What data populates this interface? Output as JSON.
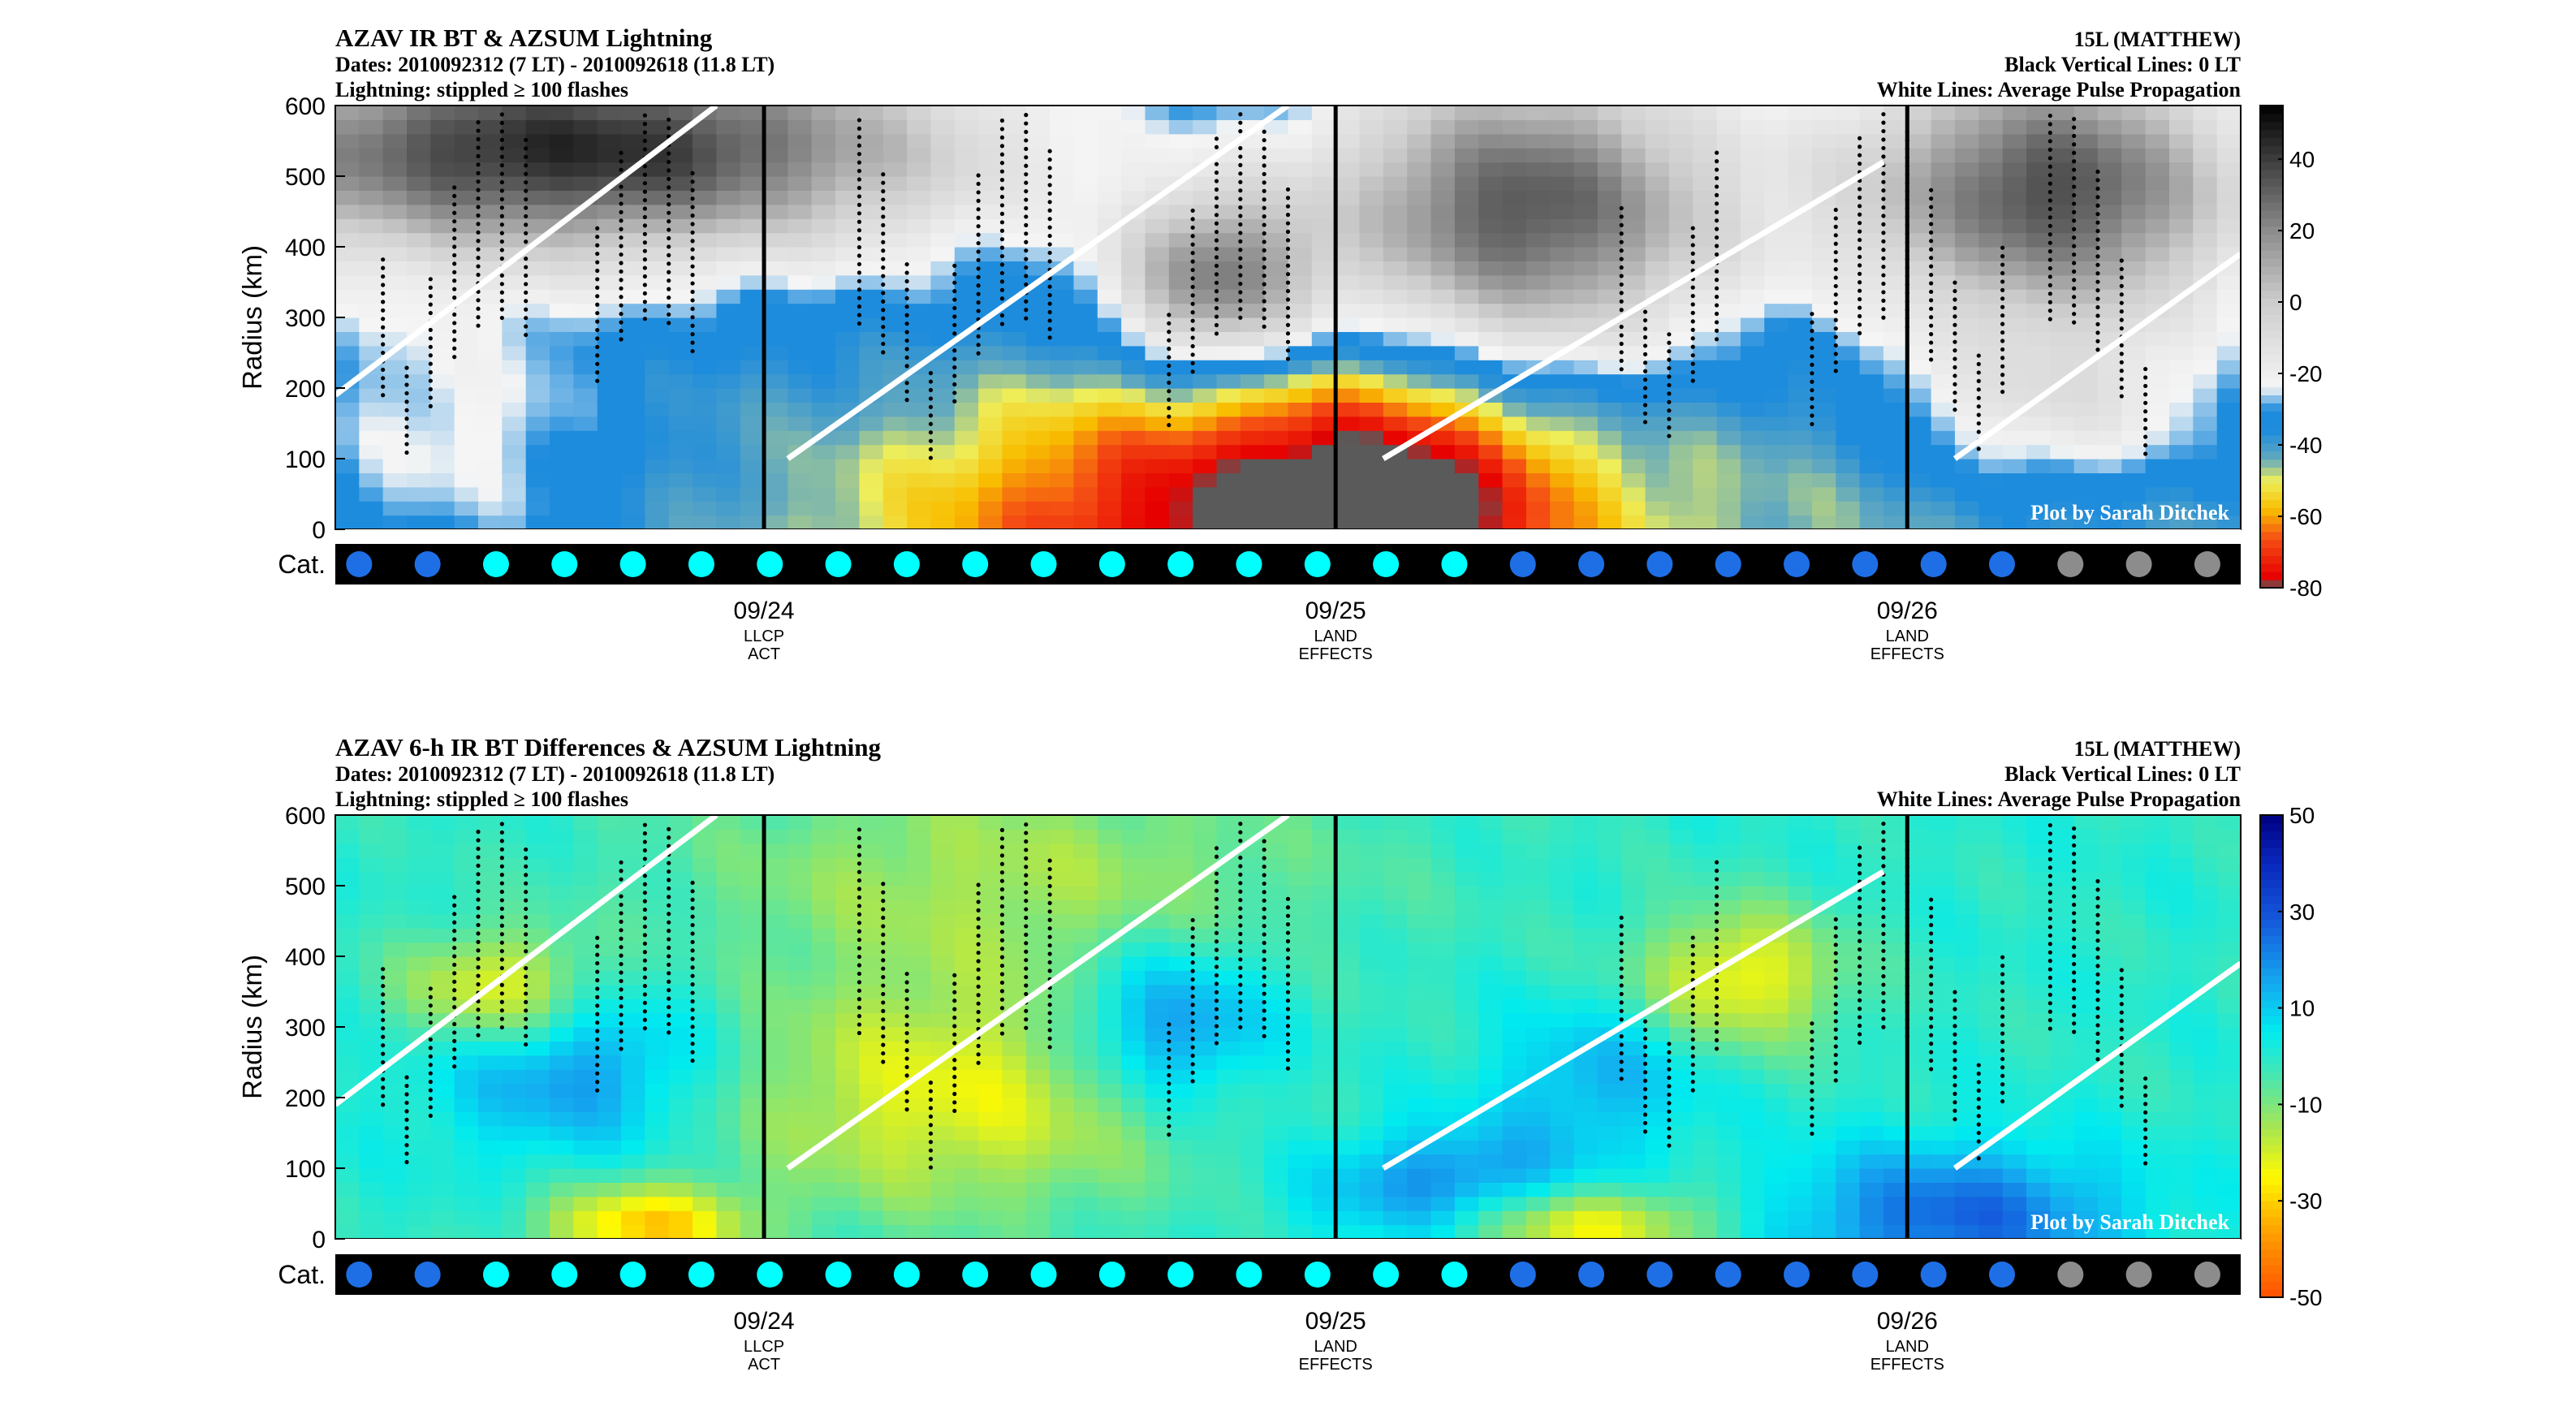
{
  "chart_data": [
    {
      "type": "heatmap",
      "title": "AZAV IR BT & AZSUM Lightning",
      "subtitle_lines": [
        "Dates: 2010092312 (7 LT) - 2010092618 (11.8 LT)",
        "Lightning: stippled ≥ 100 flashes"
      ],
      "right_lines": [
        "15L (MATTHEW)",
        "Black Vertical Lines: 0 LT",
        "White Lines: Average Pulse Propagation"
      ],
      "ylabel": "Radius (km)",
      "yticks": [
        "0",
        "100",
        "200",
        "300",
        "400",
        "500",
        "600"
      ],
      "ylim": [
        0,
        600
      ],
      "xticks": [
        {
          "label": "09/24",
          "sub": [
            "LLCP",
            "ACT"
          ],
          "time": 12
        },
        {
          "label": "09/25",
          "sub": [
            "LAND",
            "EFFECTS"
          ],
          "time": 36
        },
        {
          "label": "09/26",
          "sub": [
            "LAND",
            "EFFECTS"
          ],
          "time": 60
        }
      ],
      "xlim_hours": [
        -6,
        74
      ],
      "zero_lt_lines_hours": [
        12,
        36,
        60
      ],
      "colorbar": {
        "ticks": [
          "40",
          "20",
          "0",
          "-20",
          "-40",
          "-60",
          "-80"
        ],
        "range": [
          -80,
          55
        ],
        "palette": "ir_bt"
      },
      "watermark": "Plot by Sarah Ditchek",
      "cat_label": "Cat.",
      "category_colors": [
        "#1e6fe6",
        "#1e6fe6",
        "#00ffff",
        "#00ffff",
        "#00ffff",
        "#00ffff",
        "#00ffff",
        "#00ffff",
        "#00ffff",
        "#00ffff",
        "#00ffff",
        "#00ffff",
        "#00ffff",
        "#00ffff",
        "#00ffff",
        "#00ffff",
        "#00ffff",
        "#1e6fe6",
        "#1e6fe6",
        "#1e6fe6",
        "#1e6fe6",
        "#1e6fe6",
        "#1e6fe6",
        "#1e6fe6",
        "#1e6fe6",
        "#8c8c8c",
        "#8c8c8c",
        "#8c8c8c"
      ],
      "pulse_lines": [
        [
          [
            -6,
            190
          ],
          [
            10,
            600
          ]
        ],
        [
          [
            13,
            100
          ],
          [
            34,
            600
          ]
        ],
        [
          [
            38,
            100
          ],
          [
            59,
            520
          ]
        ],
        [
          [
            62,
            100
          ],
          [
            74,
            390
          ]
        ]
      ],
      "field_blobs": [
        {
          "t": 30,
          "r": 5,
          "st": 9,
          "sr": 200,
          "v": -76
        },
        {
          "t": 39,
          "r": 30,
          "st": 5,
          "sr": 130,
          "v": -70
        },
        {
          "t": 54,
          "r": 30,
          "st": 7,
          "sr": 180,
          "v": -45
        },
        {
          "t": 23,
          "r": 260,
          "st": 7,
          "sr": 130,
          "v": -30
        },
        {
          "t": -1,
          "r": 150,
          "st": 5,
          "sr": 160,
          "v": -23
        },
        {
          "t": 66,
          "r": 170,
          "st": 5,
          "sr": 80,
          "v": -18
        },
        {
          "t": 44,
          "r": 450,
          "st": 6,
          "sr": 150,
          "v": 34
        },
        {
          "t": 66,
          "r": 480,
          "st": 6,
          "sr": 140,
          "v": 35
        },
        {
          "t": 4,
          "r": 540,
          "st": 12,
          "sr": 110,
          "v": 44
        },
        {
          "t": 31,
          "r": 350,
          "st": 3,
          "sr": 90,
          "v": 20
        }
      ],
      "field_base": -40,
      "stipple_segments": [
        [
          -4,
          2
        ],
        [
          5,
          9
        ],
        [
          16,
          24
        ],
        [
          29,
          34
        ],
        [
          48,
          52
        ],
        [
          56,
          64
        ],
        [
          66,
          70
        ]
      ]
    },
    {
      "type": "heatmap",
      "title": "AZAV 6-h IR BT Differences & AZSUM Lightning",
      "subtitle_lines": [
        "Dates: 2010092312 (7 LT) - 2010092618 (11.8 LT)",
        "Lightning: stippled ≥ 100 flashes"
      ],
      "right_lines": [
        "15L (MATTHEW)",
        "Black Vertical Lines: 0 LT",
        "White Lines: Average Pulse Propagation"
      ],
      "ylabel": "Radius (km)",
      "yticks": [
        "0",
        "100",
        "200",
        "300",
        "400",
        "500",
        "600"
      ],
      "ylim": [
        0,
        600
      ],
      "xticks": [
        {
          "label": "09/24",
          "sub": [
            "LLCP",
            "ACT"
          ],
          "time": 12
        },
        {
          "label": "09/25",
          "sub": [
            "LAND",
            "EFFECTS"
          ],
          "time": 36
        },
        {
          "label": "09/26",
          "sub": [
            "LAND",
            "EFFECTS"
          ],
          "time": 60
        }
      ],
      "xlim_hours": [
        -6,
        74
      ],
      "zero_lt_lines_hours": [
        12,
        36,
        60
      ],
      "colorbar": {
        "ticks": [
          "50",
          "30",
          "10",
          "-10",
          "-30",
          "-50"
        ],
        "range": [
          -50,
          50
        ],
        "palette": "diff"
      },
      "watermark": "Plot by Sarah Ditchek",
      "cat_label": "Cat.",
      "category_colors": [
        "#1e6fe6",
        "#1e6fe6",
        "#00ffff",
        "#00ffff",
        "#00ffff",
        "#00ffff",
        "#00ffff",
        "#00ffff",
        "#00ffff",
        "#00ffff",
        "#00ffff",
        "#00ffff",
        "#00ffff",
        "#00ffff",
        "#00ffff",
        "#00ffff",
        "#00ffff",
        "#1e6fe6",
        "#1e6fe6",
        "#1e6fe6",
        "#1e6fe6",
        "#1e6fe6",
        "#1e6fe6",
        "#1e6fe6",
        "#1e6fe6",
        "#8c8c8c",
        "#8c8c8c",
        "#8c8c8c"
      ],
      "pulse_lines": [
        [
          [
            -6,
            190
          ],
          [
            10,
            600
          ]
        ],
        [
          [
            13,
            100
          ],
          [
            34,
            600
          ]
        ],
        [
          [
            38,
            100
          ],
          [
            59,
            520
          ]
        ],
        [
          [
            62,
            100
          ],
          [
            74,
            390
          ]
        ]
      ],
      "field_blobs": [
        {
          "t": 4,
          "r": 250,
          "st": 4,
          "sr": 90,
          "v": 20
        },
        {
          "t": 29,
          "r": 300,
          "st": 3,
          "sr": 80,
          "v": 24
        },
        {
          "t": 41,
          "r": 70,
          "st": 4,
          "sr": 60,
          "v": 22
        },
        {
          "t": 62,
          "r": 30,
          "st": 5,
          "sr": 70,
          "v": 26
        },
        {
          "t": 47,
          "r": 230,
          "st": 3,
          "sr": 70,
          "v": 14
        },
        {
          "t": 1,
          "r": 350,
          "st": 3,
          "sr": 60,
          "v": -26
        },
        {
          "t": 20,
          "r": 200,
          "st": 7,
          "sr": 120,
          "v": -22
        },
        {
          "t": 53,
          "r": 370,
          "st": 3,
          "sr": 70,
          "v": -24
        },
        {
          "t": 7,
          "r": 20,
          "st": 3,
          "sr": 40,
          "v": -30
        },
        {
          "t": 46,
          "r": 20,
          "st": 4,
          "sr": 40,
          "v": -28
        },
        {
          "t": 22,
          "r": 520,
          "st": 10,
          "sr": 120,
          "v": -14
        }
      ],
      "field_base": 0,
      "stipple_segments": [
        [
          -4,
          2
        ],
        [
          5,
          9
        ],
        [
          16,
          24
        ],
        [
          29,
          34
        ],
        [
          48,
          52
        ],
        [
          56,
          64
        ],
        [
          66,
          70
        ]
      ]
    }
  ]
}
